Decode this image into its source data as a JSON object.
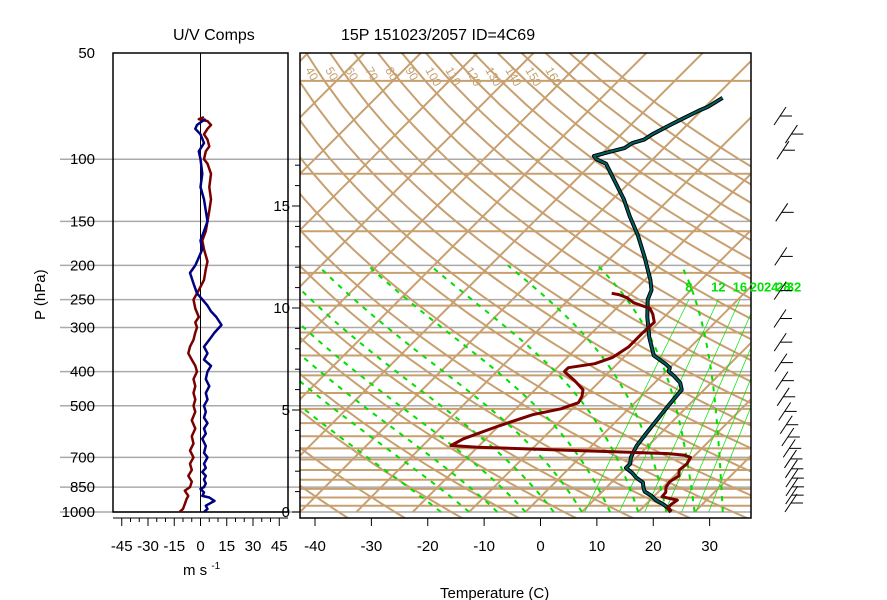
{
  "colors": {
    "isopleth": "#c8a070",
    "isobar_grid": "#aaaaaa",
    "temperature": "#7a0000",
    "dewpoint": "#006060",
    "dewpoint_outline": "#000000",
    "u_component": "#7a0000",
    "v_component": "#000080",
    "mixing_ratio": "#00e000",
    "wind_barbs": "#000000"
  },
  "chart_data": [
    {
      "type": "line",
      "title": "U/V Comps",
      "xlabel": "m s",
      "xlabel_superscript": "-1",
      "ylabel": "P (hPa)",
      "xlim": [
        -50,
        50
      ],
      "x_ticks": [
        -45,
        -30,
        -15,
        0,
        15,
        30,
        45
      ],
      "y_ticks": [
        50,
        100,
        150,
        200,
        250,
        300,
        400,
        500,
        700,
        850,
        1000
      ],
      "y_scale": "log",
      "grid": true,
      "series": [
        {
          "points": [
            [
              -12,
              1000
            ],
            [
              -10,
              980
            ],
            [
              -9,
              950
            ],
            [
              -8,
              920
            ],
            [
              -7,
              900
            ],
            [
              -9,
              870
            ],
            [
              -6,
              850
            ],
            [
              -5,
              820
            ],
            [
              -7,
              790
            ],
            [
              -5,
              760
            ],
            [
              -6,
              730
            ],
            [
              -4,
              700
            ],
            [
              -6,
              670
            ],
            [
              -4,
              640
            ],
            [
              -5,
              610
            ],
            [
              -3,
              580
            ],
            [
              -5,
              550
            ],
            [
              -3,
              520
            ],
            [
              -4,
              500
            ],
            [
              -3,
              480
            ],
            [
              -4,
              460
            ],
            [
              -3,
              440
            ],
            [
              -4,
              420
            ],
            [
              -2,
              400
            ],
            [
              -3,
              385
            ],
            [
              -5,
              370
            ],
            [
              -7,
              355
            ],
            [
              -6,
              340
            ],
            [
              -4,
              325
            ],
            [
              -3,
              310
            ],
            [
              -2,
              300
            ],
            [
              -3,
              290
            ],
            [
              -1,
              280
            ],
            [
              -3,
              265
            ],
            [
              -4,
              250
            ],
            [
              -1,
              235
            ],
            [
              2,
              220
            ],
            [
              3,
              205
            ],
            [
              4,
              195
            ],
            [
              2,
              180
            ],
            [
              1,
              170
            ],
            [
              3,
              160
            ],
            [
              4,
              150
            ],
            [
              5,
              140
            ],
            [
              6,
              130
            ],
            [
              5,
              120
            ],
            [
              6,
              110
            ],
            [
              4,
              103
            ],
            [
              2,
              100
            ],
            [
              3,
              95
            ],
            [
              5,
              92
            ],
            [
              4,
              88
            ],
            [
              2,
              85
            ],
            [
              4,
              82
            ],
            [
              6,
              80
            ],
            [
              4,
              78
            ],
            [
              -1,
              77
            ],
            [
              2,
              76
            ]
          ]
        },
        {
          "points": [
            [
              2,
              1000
            ],
            [
              4,
              980
            ],
            [
              3,
              960
            ],
            [
              8,
              930
            ],
            [
              5,
              910
            ],
            [
              1,
              900
            ],
            [
              2,
              880
            ],
            [
              0,
              860
            ],
            [
              2,
              850
            ],
            [
              3,
              830
            ],
            [
              2,
              810
            ],
            [
              3,
              790
            ],
            [
              1,
              770
            ],
            [
              3,
              750
            ],
            [
              2,
              730
            ],
            [
              4,
              700
            ],
            [
              2,
              680
            ],
            [
              3,
              650
            ],
            [
              1,
              620
            ],
            [
              3,
              600
            ],
            [
              2,
              580
            ],
            [
              4,
              560
            ],
            [
              2,
              540
            ],
            [
              3,
              520
            ],
            [
              2,
              500
            ],
            [
              4,
              480
            ],
            [
              3,
              460
            ],
            [
              5,
              440
            ],
            [
              3,
              420
            ],
            [
              4,
              400
            ],
            [
              6,
              385
            ],
            [
              2,
              370
            ],
            [
              4,
              355
            ],
            [
              2,
              340
            ],
            [
              5,
              325
            ],
            [
              8,
              310
            ],
            [
              12,
              295
            ],
            [
              9,
              280
            ],
            [
              6,
              270
            ],
            [
              4,
              260
            ],
            [
              -2,
              240
            ],
            [
              -4,
              225
            ],
            [
              -6,
              210
            ],
            [
              -3,
              200
            ],
            [
              -1,
              190
            ],
            [
              1,
              180
            ],
            [
              0,
              170
            ],
            [
              2,
              160
            ],
            [
              4,
              150
            ],
            [
              3,
              140
            ],
            [
              2,
              130
            ],
            [
              0,
              120
            ],
            [
              1,
              110
            ],
            [
              0,
              100
            ],
            [
              -1,
              95
            ],
            [
              2,
              90
            ],
            [
              0,
              85
            ],
            [
              -3,
              82
            ],
            [
              -2,
              80
            ],
            [
              1,
              78
            ],
            [
              3,
              77
            ]
          ]
        }
      ]
    },
    {
      "type": "line",
      "title": "15P 151023/2057 ID=4C69",
      "xlabel": "Temperature (C)",
      "xlim": [
        -40,
        40
      ],
      "ylim": [
        1000,
        60
      ],
      "x_ticks": [
        -40,
        -30,
        -20,
        -10,
        0,
        10,
        20,
        30
      ],
      "y_axis_height_km_ticks": [
        0,
        5,
        10,
        15
      ],
      "mixing_ratio_labels": [
        "8",
        "12",
        "16",
        "20",
        "24",
        "28",
        "32"
      ],
      "dry_adiabat_labels": [
        "40",
        "50",
        "60",
        "70",
        "80",
        "90",
        "100",
        "110",
        "120",
        "130",
        "140",
        "150",
        "160"
      ],
      "series": [
        {
          "name": "Temperature",
          "points": [
            [
              25.8,
              1000
            ],
            [
              24.5,
              975
            ],
            [
              24.5,
              950
            ],
            [
              24.8,
              925
            ],
            [
              21.5,
              905
            ],
            [
              21.4,
              880
            ],
            [
              20.5,
              850
            ],
            [
              20.2,
              820
            ],
            [
              20.8,
              790
            ],
            [
              19.8,
              760
            ],
            [
              20.1,
              730
            ],
            [
              19.6,
              700
            ],
            [
              18.0,
              690
            ],
            [
              15.0,
              683
            ],
            [
              5.0,
              675
            ],
            [
              -5.0,
              667
            ],
            [
              -20.0,
              655
            ],
            [
              -25.0,
              648
            ],
            [
              -24.0,
              620
            ],
            [
              -20.0,
              570
            ],
            [
              -16.0,
              530
            ],
            [
              -12.0,
              510
            ],
            [
              -10.0,
              490
            ],
            [
              -10.5,
              470
            ],
            [
              -11.5,
              450
            ],
            [
              -14.5,
              425
            ],
            [
              -18.0,
              400
            ],
            [
              -18.0,
              390
            ],
            [
              -14.0,
              380
            ],
            [
              -12.0,
              365
            ],
            [
              -11.0,
              340
            ],
            [
              -11.0,
              310
            ],
            [
              -10.8,
              290
            ],
            [
              -12.5,
              275
            ],
            [
              -14.0,
              265
            ],
            [
              -18.0,
              255
            ],
            [
              -20.0,
              247
            ],
            [
              -22.0,
              242
            ],
            [
              -23.5,
              240
            ]
          ]
        },
        {
          "name": "Dewpoint",
          "points": [
            [
              25.8,
              1000
            ],
            [
              24.6,
              975
            ],
            [
              23.0,
              950
            ],
            [
              21.0,
              925
            ],
            [
              19.5,
              900
            ],
            [
              17.5,
              875
            ],
            [
              16.5,
              850
            ],
            [
              15.6,
              825
            ],
            [
              13.6,
              800
            ],
            [
              12.0,
              775
            ],
            [
              10.0,
              750
            ],
            [
              10.0,
              730
            ],
            [
              9.0,
              700
            ],
            [
              8.5,
              675
            ],
            [
              8.0,
              650
            ],
            [
              7.5,
              600
            ],
            [
              7.0,
              550
            ],
            [
              6.5,
              500
            ],
            [
              6.0,
              450
            ],
            [
              4.5,
              430
            ],
            [
              2.0,
              410
            ],
            [
              0.5,
              400
            ],
            [
              0.0,
              390
            ],
            [
              -1.5,
              380
            ],
            [
              -5.0,
              360
            ],
            [
              -9.0,
              320
            ],
            [
              -13.0,
              280
            ],
            [
              -16.0,
              250
            ],
            [
              -17.0,
              235
            ],
            [
              -19.0,
              220
            ],
            [
              -24.0,
              190
            ],
            [
              -29.0,
              165
            ],
            [
              -34.0,
              145
            ],
            [
              -38.0,
              130
            ],
            [
              -43.0,
              115
            ],
            [
              -47.5,
              103
            ],
            [
              -50.0,
              100
            ],
            [
              -51.0,
              98
            ],
            [
              -49.5,
              96
            ],
            [
              -47.0,
              93
            ],
            [
              -46.5,
              90
            ],
            [
              -45.0,
              88
            ],
            [
              -44.5,
              85
            ],
            [
              -43.0,
              80
            ],
            [
              -42.0,
              77
            ],
            [
              -40.5,
              73
            ],
            [
              -39.5,
              71
            ],
            [
              -39.0,
              69
            ],
            [
              -38.5,
              67
            ]
          ]
        },
        {
          "name": "Wind barbs",
          "type": "barbs",
          "points": [
            [
              10,
              1000
            ],
            [
              12,
              950
            ],
            [
              8,
              900
            ],
            [
              10,
              850
            ],
            [
              14,
              800
            ],
            [
              12,
              750
            ],
            [
              9,
              700
            ],
            [
              11,
              650
            ],
            [
              13,
              600
            ],
            [
              10,
              550
            ],
            [
              8,
              500
            ],
            [
              12,
              450
            ],
            [
              14,
              400
            ],
            [
              10,
              350
            ],
            [
              12,
              300
            ],
            [
              15,
              250
            ],
            [
              18,
              200
            ],
            [
              15,
              150
            ],
            [
              12,
              100
            ],
            [
              9,
              90
            ],
            [
              8,
              80
            ]
          ]
        }
      ]
    }
  ]
}
